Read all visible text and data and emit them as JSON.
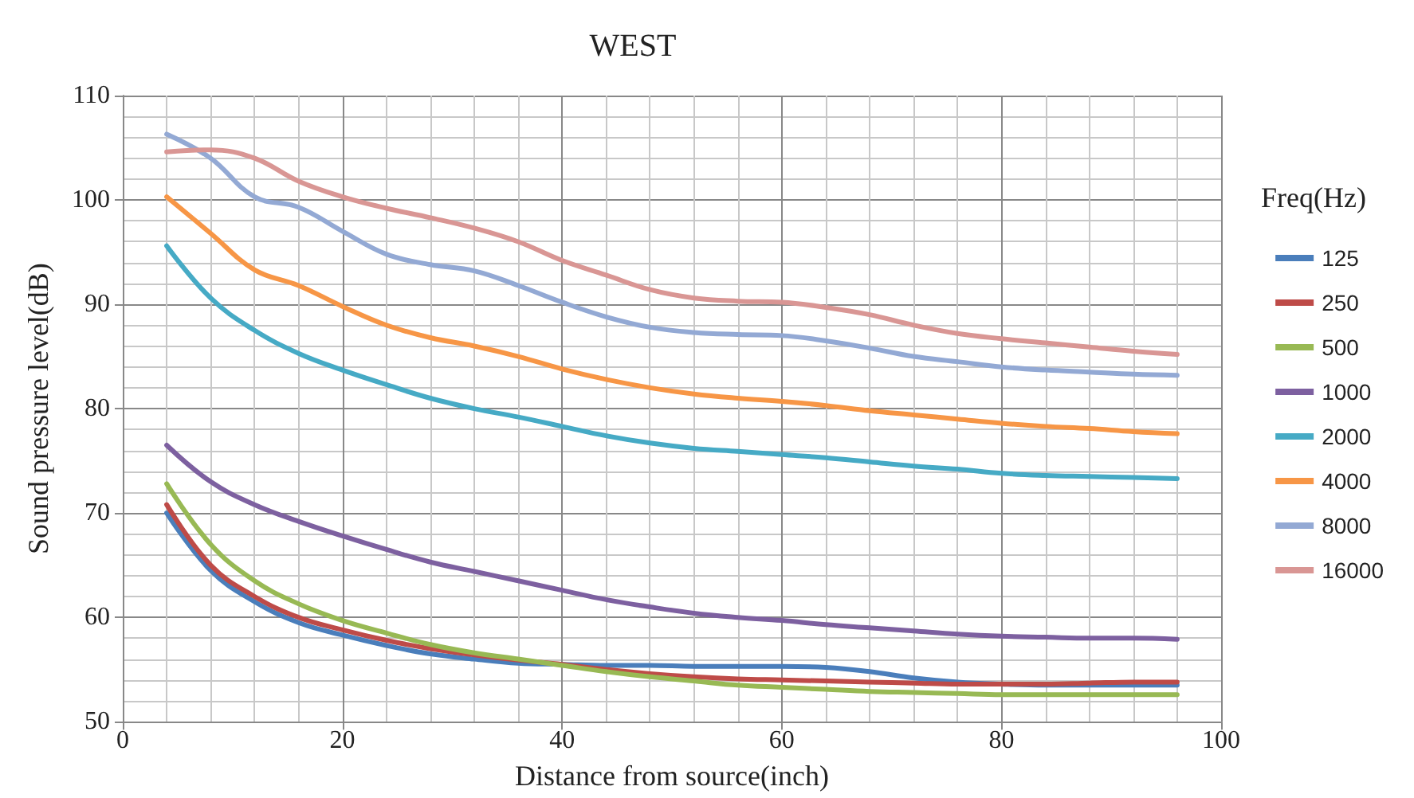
{
  "chart_data": {
    "type": "line",
    "title": "WEST",
    "xlabel": "Distance from source(inch)",
    "ylabel": "Sound pressure level(dB)",
    "legend_title": "Freq(Hz)",
    "x": [
      4,
      8,
      12,
      16,
      20,
      24,
      28,
      32,
      36,
      40,
      44,
      48,
      52,
      56,
      60,
      64,
      68,
      72,
      76,
      80,
      84,
      88,
      92,
      96
    ],
    "series": [
      {
        "name": "125",
        "color": "#4a7ebb",
        "values": [
          70,
          64.5,
          61.5,
          59.5,
          58.3,
          57.3,
          56.5,
          56,
          55.6,
          55.5,
          55.4,
          55.4,
          55.3,
          55.3,
          55.3,
          55.2,
          54.8,
          54.2,
          53.8,
          53.6,
          53.5,
          53.5,
          53.5,
          53.5
        ]
      },
      {
        "name": "250",
        "color": "#be4b48",
        "values": [
          70.8,
          65,
          62,
          60,
          58.8,
          57.8,
          57,
          56.4,
          55.9,
          55.5,
          55,
          54.6,
          54.3,
          54.1,
          54,
          53.9,
          53.8,
          53.7,
          53.6,
          53.6,
          53.6,
          53.7,
          53.8,
          53.8
        ]
      },
      {
        "name": "500",
        "color": "#98b954",
        "values": [
          72.8,
          67,
          63.5,
          61.3,
          59.7,
          58.5,
          57.4,
          56.6,
          56,
          55.4,
          54.8,
          54.3,
          53.9,
          53.5,
          53.3,
          53.1,
          52.9,
          52.8,
          52.7,
          52.6,
          52.6,
          52.6,
          52.6,
          52.6
        ]
      },
      {
        "name": "1000",
        "color": "#7d60a0",
        "values": [
          76.5,
          73,
          70.8,
          69.2,
          67.8,
          66.5,
          65.3,
          64.4,
          63.5,
          62.6,
          61.7,
          61,
          60.4,
          60,
          59.7,
          59.3,
          59,
          58.7,
          58.4,
          58.2,
          58.1,
          58,
          58,
          57.9
        ]
      },
      {
        "name": "2000",
        "color": "#46aac5",
        "values": [
          95.6,
          90.6,
          87.5,
          85.3,
          83.7,
          82.3,
          81,
          80,
          79.2,
          78.3,
          77.4,
          76.7,
          76.2,
          75.9,
          75.6,
          75.3,
          74.9,
          74.5,
          74.2,
          73.8,
          73.6,
          73.5,
          73.4,
          73.3
        ]
      },
      {
        "name": "4000",
        "color": "#f79646",
        "values": [
          100.3,
          96.8,
          93.3,
          91.8,
          89.8,
          88,
          86.8,
          86,
          85,
          83.8,
          82.8,
          82,
          81.4,
          81,
          80.7,
          80.3,
          79.8,
          79.4,
          79,
          78.6,
          78.3,
          78.1,
          77.8,
          77.6
        ]
      },
      {
        "name": "8000",
        "color": "#93a9d4",
        "values": [
          106.3,
          104,
          100.3,
          99.3,
          97,
          94.8,
          93.8,
          93.2,
          91.8,
          90.2,
          88.8,
          87.8,
          87.3,
          87.1,
          87,
          86.5,
          85.8,
          85,
          84.5,
          84,
          83.7,
          83.5,
          83.3,
          83.2
        ]
      },
      {
        "name": "16000",
        "color": "#d99694",
        "values": [
          104.6,
          104.8,
          104,
          101.8,
          100.3,
          99.2,
          98.3,
          97.3,
          96,
          94.2,
          92.8,
          91.4,
          90.6,
          90.3,
          90.2,
          89.7,
          89,
          88,
          87.2,
          86.7,
          86.3,
          85.9,
          85.5,
          85.2
        ]
      }
    ],
    "xlim": [
      0,
      100
    ],
    "xticks": [
      0,
      20,
      40,
      60,
      80,
      100
    ],
    "ylim": [
      50,
      110
    ],
    "yticks": [
      50,
      60,
      70,
      80,
      90,
      100,
      110
    ],
    "grid": true,
    "legend": "right",
    "marker": "none",
    "line_style": "solid"
  }
}
